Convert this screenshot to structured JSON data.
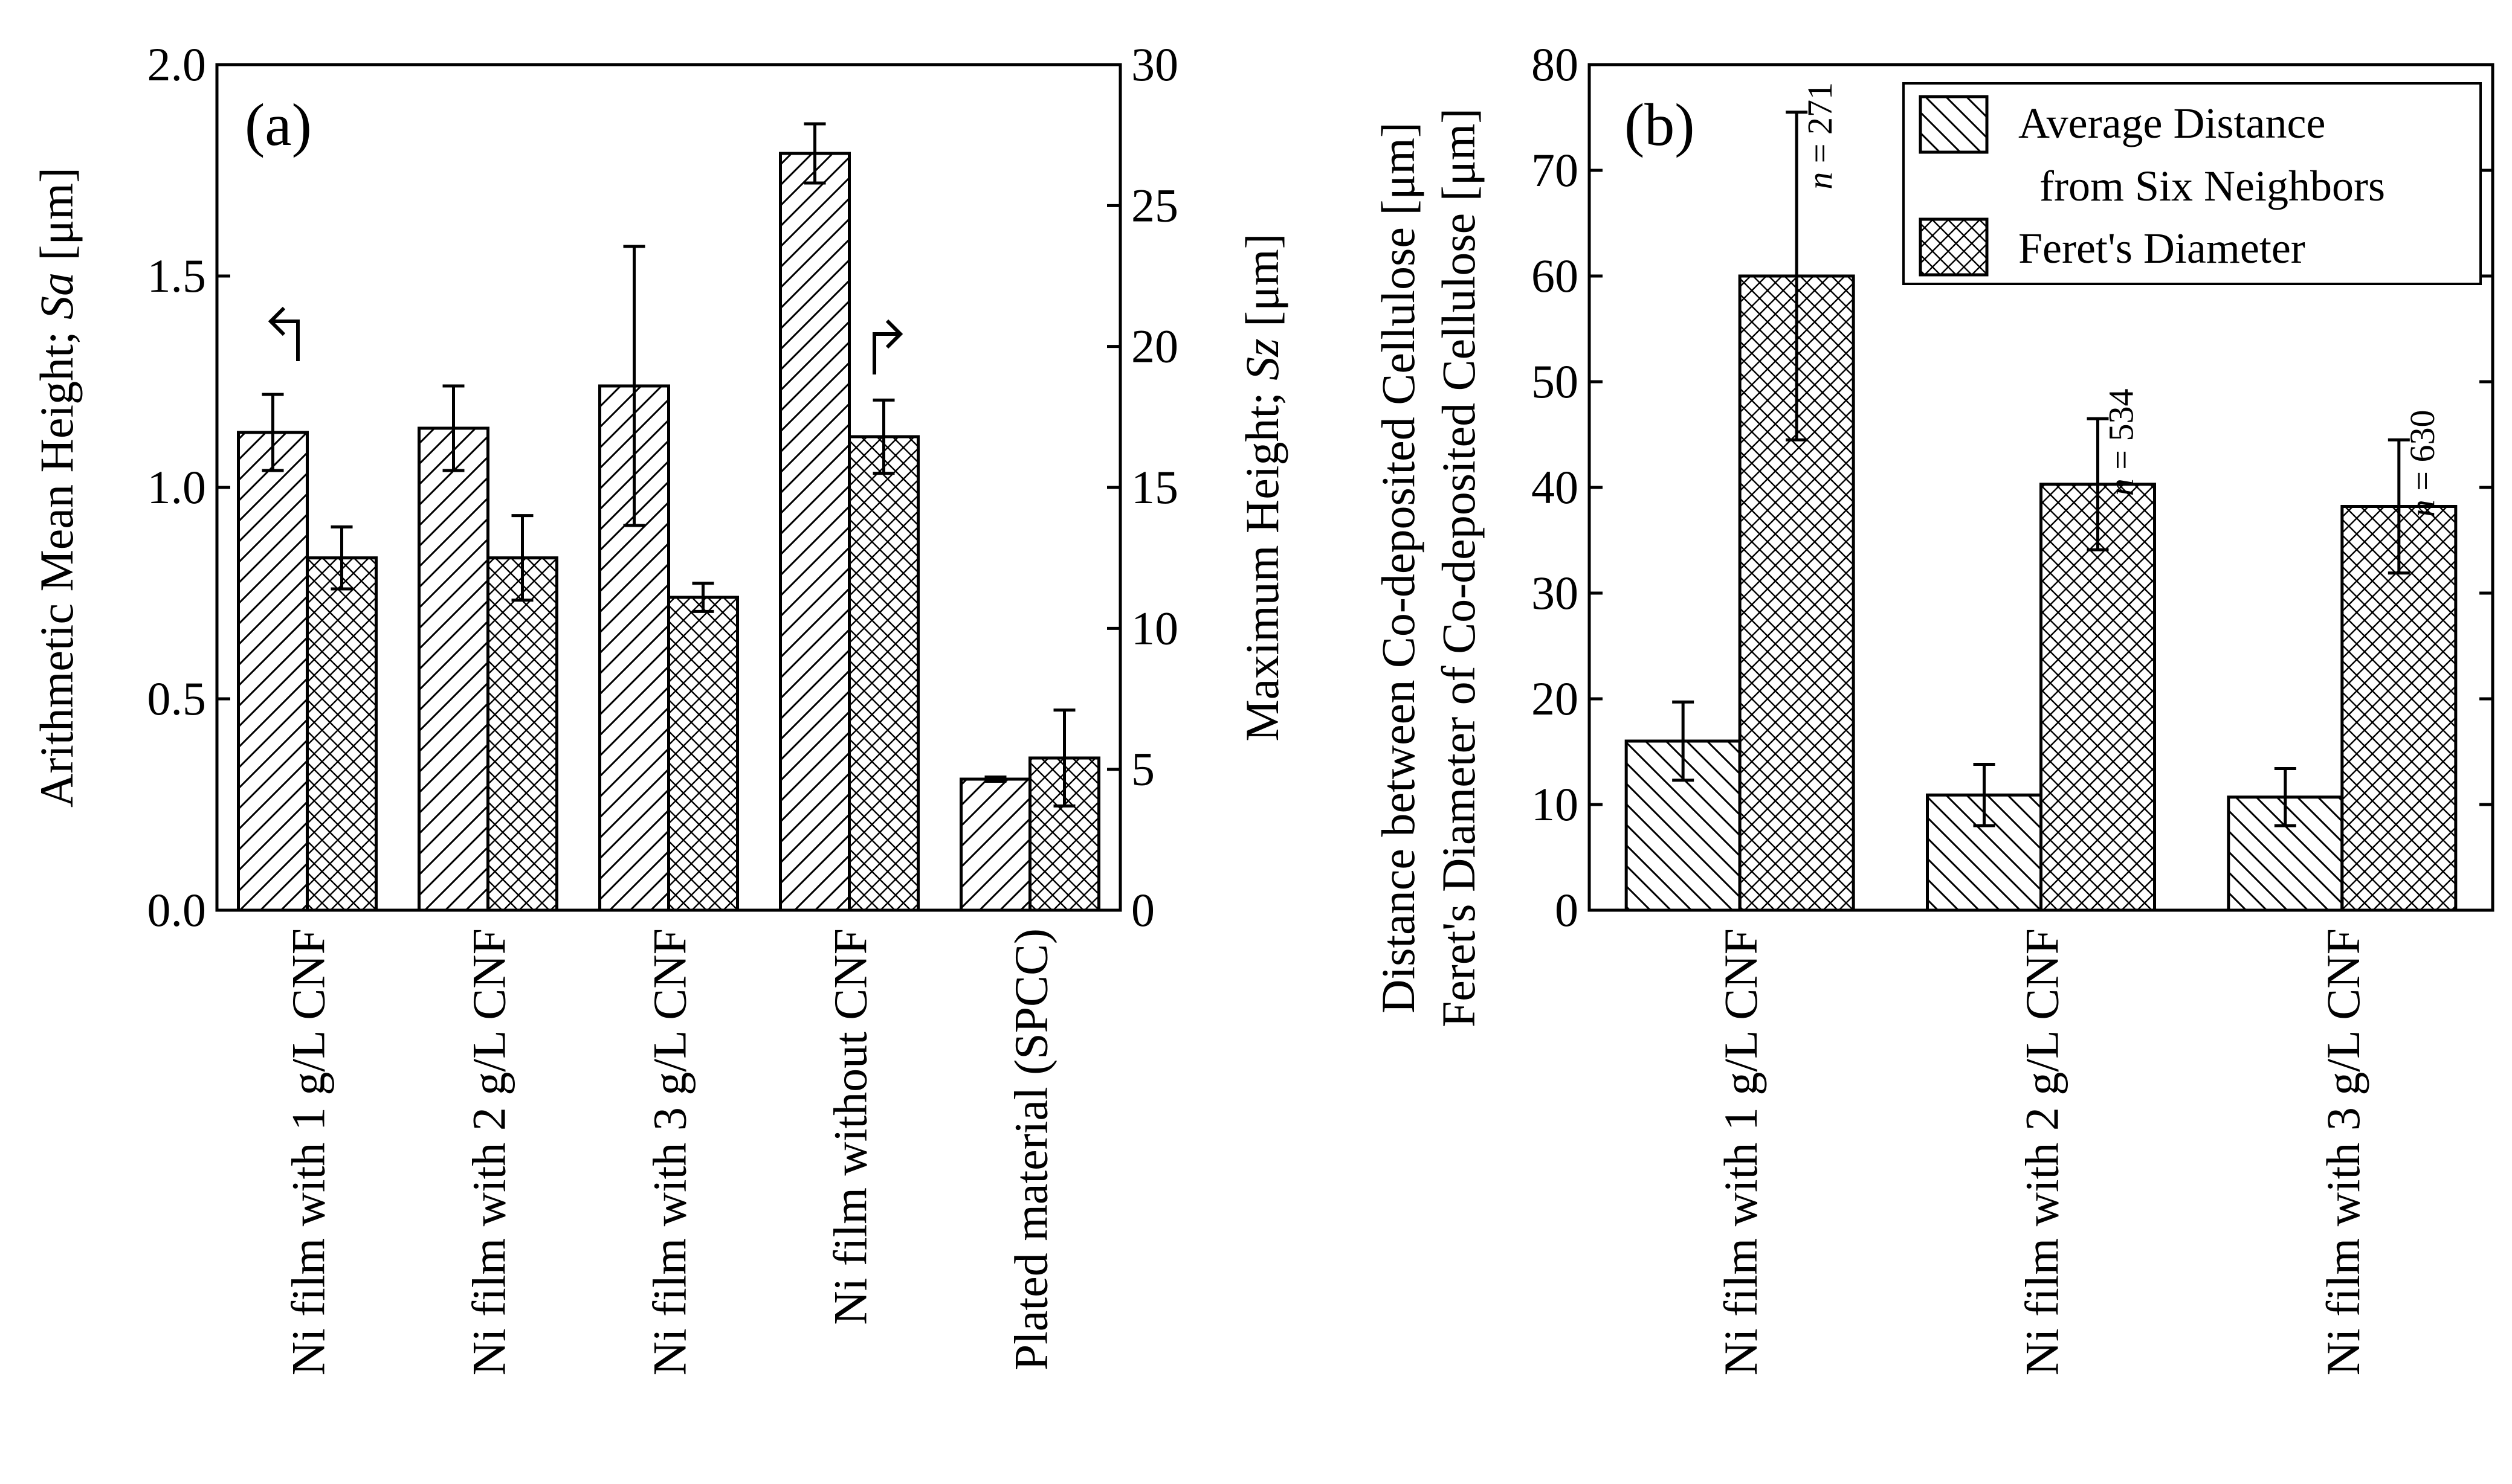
{
  "chart_data": [
    {
      "type": "bar",
      "panel_label": "(a)",
      "categories": [
        "Ni film with 1 g/L CNF",
        "Ni film with 2 g/L CNF",
        "Ni film with 3 g/L CNF",
        "Ni film without CNF",
        "Plated material (SPCC)"
      ],
      "series": [
        {
          "name": "Sa",
          "axis": "left",
          "pattern": "diagonal",
          "values": [
            1.13,
            1.14,
            1.24,
            1.79,
            0.31
          ],
          "errors": [
            0.09,
            0.1,
            0.33,
            0.07,
            0.005
          ]
        },
        {
          "name": "Sz",
          "axis": "right",
          "pattern": "crosshatch",
          "values": [
            12.5,
            12.5,
            11.1,
            16.8,
            5.4
          ],
          "errors": [
            1.1,
            1.5,
            0.5,
            1.3,
            1.7
          ]
        }
      ],
      "ylabel_left": [
        "Arithmetic Mean Height; ",
        "Sa",
        " [μm]"
      ],
      "ylabel_right": [
        "Maximum Height; ",
        "Sz",
        " [μm]"
      ],
      "ylim_left": [
        0,
        2.0
      ],
      "ylim_right": [
        0,
        30
      ],
      "yticks_left": [
        "0.0",
        "0.5",
        "1.0",
        "1.5",
        "2.0"
      ],
      "yticks_right": [
        "0",
        "5",
        "10",
        "15",
        "20",
        "25",
        "30"
      ]
    },
    {
      "type": "bar",
      "panel_label": "(b)",
      "categories": [
        "Ni film with 1 g/L CNF",
        "Ni film with 2 g/L CNF",
        "Ni film with 3 g/L CNF"
      ],
      "series": [
        {
          "name": "Average Distance from Six Neighbors",
          "pattern": "diagonal-back",
          "values": [
            16.0,
            10.9,
            10.7
          ],
          "errors": [
            3.7,
            2.9,
            2.7
          ]
        },
        {
          "name": "Feret's Diameter",
          "pattern": "crosshatch",
          "values": [
            60.0,
            40.3,
            38.2
          ],
          "errors": [
            15.5,
            6.2,
            6.3
          ]
        }
      ],
      "n_labels": [
        "n = 271",
        "n = 534",
        "n = 630"
      ],
      "legend": {
        "placement": "top-right",
        "entries": [
          "Average Distance",
          "from Six Neighbors",
          "Feret's Diameter"
        ]
      },
      "ylabel_lines": [
        "Distance between Co-deposited Cellulose [μm]",
        "Feret's Diameter of Co-deposited Cellulose [μm]"
      ],
      "ylim": [
        0,
        80
      ],
      "yticks": [
        "0",
        "10",
        "20",
        "30",
        "40",
        "50",
        "60",
        "70",
        "80"
      ]
    }
  ]
}
